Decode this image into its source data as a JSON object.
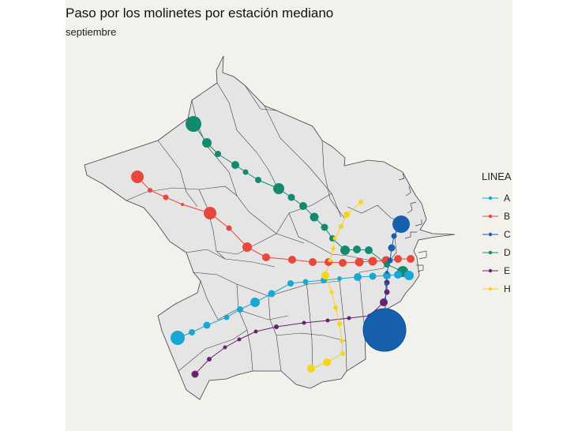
{
  "map": {
    "title": "Paso por los molinetes por estación mediano",
    "subtitle": "septiembre",
    "colors": {
      "background": "#f2f1ec",
      "land": "#e5e5e5",
      "border": "#3f3f3f"
    }
  },
  "legend": {
    "title": "LINEA",
    "items": [
      {
        "label": "A",
        "color": "#1aa7d4"
      },
      {
        "label": "B",
        "color": "#e8473c"
      },
      {
        "label": "C",
        "color": "#1660ad"
      },
      {
        "label": "D",
        "color": "#138a6e"
      },
      {
        "label": "E",
        "color": "#68236f"
      },
      {
        "label": "H",
        "color": "#f6d41c"
      }
    ]
  }
}
